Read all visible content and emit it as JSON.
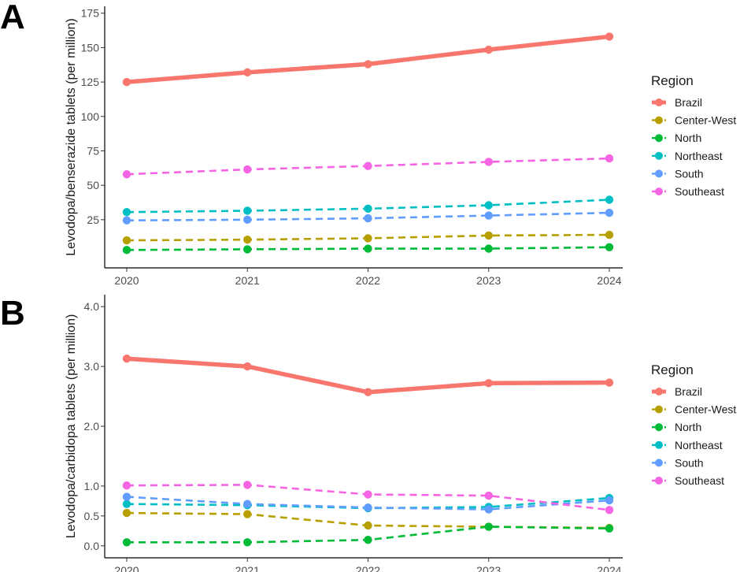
{
  "colors": {
    "Brazil": "#F8766D",
    "Center-West": "#B79F00",
    "North": "#00BA38",
    "Northeast": "#00BFC4",
    "South": "#619CFF",
    "Southeast": "#F564E3"
  },
  "legend_title": "Region",
  "chart_data": [
    {
      "panel": "A",
      "type": "line",
      "title": "",
      "xlabel": "",
      "ylabel": "Levodopa/benserazide tablets (per million)",
      "x": [
        2020,
        2021,
        2022,
        2023,
        2024
      ],
      "x_tick_labels": [
        "2020",
        "2021",
        "2022",
        "2023",
        "2024"
      ],
      "ylim": [
        -10,
        180
      ],
      "y_ticks": [
        25,
        50,
        75,
        100,
        125,
        150,
        175
      ],
      "y_tick_labels": [
        "25",
        "50",
        "75",
        "100",
        "125",
        "150",
        "175"
      ],
      "legend_title": "Region",
      "series": [
        {
          "name": "Brazil",
          "style": "solid",
          "values": [
            125,
            132,
            138,
            148.5,
            158
          ]
        },
        {
          "name": "Center-West",
          "style": "dashed",
          "values": [
            10,
            10.5,
            11.5,
            13.5,
            14
          ]
        },
        {
          "name": "North",
          "style": "dashed",
          "values": [
            3,
            3.5,
            4,
            4,
            5
          ]
        },
        {
          "name": "Northeast",
          "style": "dashed",
          "values": [
            30.5,
            31.5,
            33,
            35.5,
            39.5
          ]
        },
        {
          "name": "South",
          "style": "dashed",
          "values": [
            24.5,
            25,
            26,
            28,
            30
          ]
        },
        {
          "name": "Southeast",
          "style": "dashed",
          "values": [
            58,
            61.5,
            64,
            67,
            69.5
          ]
        }
      ]
    },
    {
      "panel": "B",
      "type": "line",
      "title": "",
      "xlabel": "",
      "ylabel": "Levodopa/carbidopa tablets (per million)",
      "x": [
        2020,
        2021,
        2022,
        2023,
        2024
      ],
      "x_tick_labels": [
        "2020",
        "2021",
        "2022",
        "2023",
        "2024"
      ],
      "ylim": [
        -0.2,
        4.2
      ],
      "y_ticks": [
        0.0,
        0.5,
        1.0,
        2.0,
        3.0,
        4.0
      ],
      "y_tick_labels": [
        "0.0",
        "0.5",
        "1.0",
        "2.0",
        "3.0",
        "4.0"
      ],
      "legend_title": "Region",
      "series": [
        {
          "name": "Brazil",
          "style": "solid",
          "values": [
            3.13,
            3.0,
            2.57,
            2.72,
            2.73
          ]
        },
        {
          "name": "Center-West",
          "style": "dashed",
          "values": [
            0.55,
            0.53,
            0.34,
            0.32,
            0.3
          ]
        },
        {
          "name": "North",
          "style": "dashed",
          "values": [
            0.06,
            0.06,
            0.1,
            0.32,
            0.29
          ]
        },
        {
          "name": "Northeast",
          "style": "dashed",
          "values": [
            0.7,
            0.68,
            0.63,
            0.65,
            0.8
          ]
        },
        {
          "name": "South",
          "style": "dashed",
          "values": [
            0.82,
            0.7,
            0.64,
            0.61,
            0.76
          ]
        },
        {
          "name": "Southeast",
          "style": "dashed",
          "values": [
            1.01,
            1.02,
            0.86,
            0.84,
            0.6
          ]
        }
      ]
    }
  ]
}
